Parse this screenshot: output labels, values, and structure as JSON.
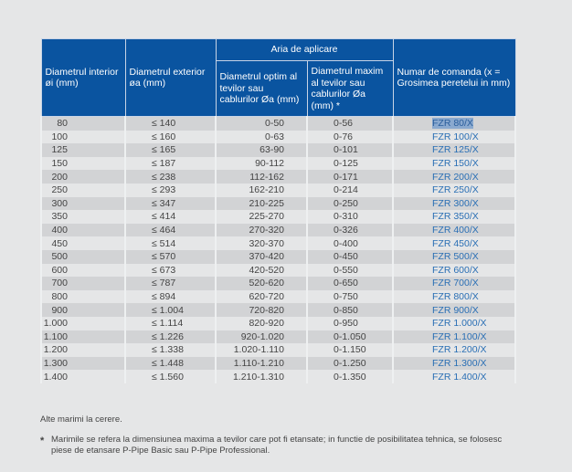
{
  "header": {
    "col1": "Diametrul interior øi (mm)",
    "col2": "Diametrul exterior øa (mm)",
    "group": "Aria de aplicare",
    "col3": "Diametrul optim al tevilor sau cablurilor Øa (mm)",
    "col4": "Diametrul maxim al tevilor sau cablurilor Øa (mm) *",
    "col5": "Numar de comanda (x = Grosimea peretelui in mm)"
  },
  "rows": [
    [
      "80",
      "≤ 140",
      "0-50",
      "0-56",
      "FZR 80/X"
    ],
    [
      "100",
      "≤ 160",
      "0-63",
      "0-76",
      "FZR 100/X"
    ],
    [
      "125",
      "≤ 165",
      "63-90",
      "0-101",
      "FZR 125/X"
    ],
    [
      "150",
      "≤ 187",
      "90-112",
      "0-125",
      "FZR 150/X"
    ],
    [
      "200",
      "≤ 238",
      "112-162",
      "0-171",
      "FZR 200/X"
    ],
    [
      "250",
      "≤ 293",
      "162-210",
      "0-214",
      "FZR 250/X"
    ],
    [
      "300",
      "≤ 347",
      "210-225",
      "0-250",
      "FZR 300/X"
    ],
    [
      "350",
      "≤ 414",
      "225-270",
      "0-310",
      "FZR 350/X"
    ],
    [
      "400",
      "≤ 464",
      "270-320",
      "0-326",
      "FZR 400/X"
    ],
    [
      "450",
      "≤ 514",
      "320-370",
      "0-400",
      "FZR 450/X"
    ],
    [
      "500",
      "≤ 570",
      "370-420",
      "0-450",
      "FZR 500/X"
    ],
    [
      "600",
      "≤ 673",
      "420-520",
      "0-550",
      "FZR 600/X"
    ],
    [
      "700",
      "≤ 787",
      "520-620",
      "0-650",
      "FZR 700/X"
    ],
    [
      "800",
      "≤ 894",
      "620-720",
      "0-750",
      "FZR 800/X"
    ],
    [
      "900",
      "≤ 1.004",
      "720-820",
      "0-850",
      "FZR 900/X"
    ],
    [
      "1.000",
      "≤ 1.114",
      "820-920",
      "0-950",
      "FZR 1.000/X"
    ],
    [
      "1.100",
      "≤ 1.226",
      "920-1.020",
      "0-1.050",
      "FZR 1.100/X"
    ],
    [
      "1.200",
      "≤ 1.338",
      "1.020-1.110",
      "0-1.150",
      "FZR 1.200/X"
    ],
    [
      "1.300",
      "≤ 1.448",
      "1.110-1.210",
      "0-1.250",
      "FZR 1.300/X"
    ],
    [
      "1.400",
      "≤ 1.560",
      "1.210-1.310",
      "0-1.350",
      "FZR 1.400/X"
    ]
  ],
  "notes": {
    "other_sizes": "Alte marimi la cerere.",
    "asterisk": "*",
    "footnote": "Marimile se refera la dimensiunea maxima a tevilor care pot fi etansate; in functie de posibilitatea tehnica, se folosesc piese de etansare P-Pipe Basic sau P-Pipe Professional."
  },
  "colors": {
    "header_bg": "#0a54a0",
    "row_alt": "#d2d3d5",
    "link": "#2a6fb5"
  }
}
